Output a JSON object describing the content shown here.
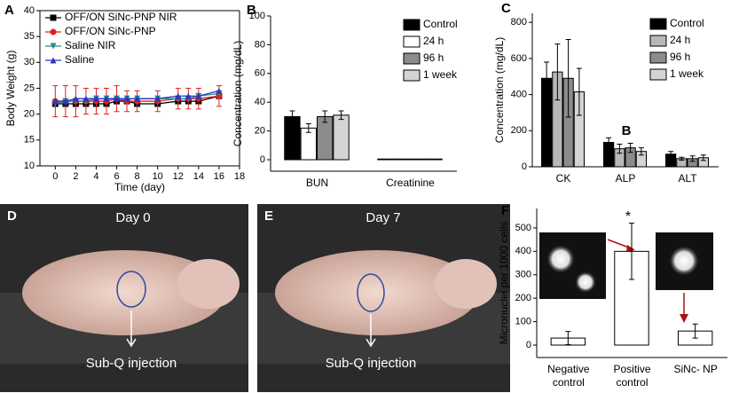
{
  "chart_data": [
    {
      "type": "line",
      "panel": "A",
      "ylabel": "Body Weight (g)",
      "xlabel": "Time (day)",
      "x": [
        0,
        1,
        2,
        3,
        4,
        5,
        6,
        7,
        8,
        10,
        12,
        13,
        14,
        16
      ],
      "xlim": [
        -1.5,
        18
      ],
      "xticks": [
        0,
        2,
        4,
        6,
        8,
        10,
        12,
        14,
        16,
        18
      ],
      "ylim": [
        10,
        40
      ],
      "yticks": [
        10,
        15,
        20,
        25,
        30,
        35,
        40
      ],
      "series": [
        {
          "name": "OFF/ON SiNc-PNP NIR",
          "color": "#000000",
          "values": [
            22,
            22,
            22,
            22,
            22,
            22,
            22.5,
            22.5,
            22,
            22,
            22.5,
            22.5,
            22.5,
            23.5
          ]
        },
        {
          "name": "OFF/ON SiNc-PNP",
          "color": "#e0201e",
          "values": [
            22.5,
            22.5,
            22.5,
            22.5,
            22.5,
            22.5,
            23,
            22.5,
            22.5,
            22.5,
            23,
            23,
            23,
            23.5
          ],
          "errors": [
            3,
            3,
            3,
            2.5,
            2.5,
            2.5,
            2.5,
            2,
            2,
            2,
            2,
            2,
            2,
            2
          ]
        },
        {
          "name": "Saline NIR",
          "color": "#2a8a8a",
          "values": [
            22,
            22.5,
            22.5,
            22.5,
            23,
            23,
            23,
            23,
            23,
            23,
            23,
            23,
            23.5,
            24
          ]
        },
        {
          "name": "Saline",
          "color": "#2b35c4",
          "values": [
            22.5,
            22.5,
            23,
            23,
            23,
            23,
            23,
            23,
            23,
            23,
            23.5,
            23.5,
            23.5,
            24.5
          ]
        }
      ]
    },
    {
      "type": "bar",
      "panel": "B",
      "ylabel": "Concentration (mg/dL)",
      "categories": [
        "BUN",
        "Creatinine"
      ],
      "ylim": [
        -8,
        100
      ],
      "yticks": [
        0,
        20,
        40,
        60,
        80,
        100
      ],
      "series": [
        {
          "name": "Control",
          "color": "#000000",
          "values": [
            30,
            0.5
          ],
          "errors": [
            4,
            0
          ]
        },
        {
          "name": "24 h",
          "color": "#ffffff",
          "values": [
            22,
            0.5
          ],
          "errors": [
            3,
            0
          ]
        },
        {
          "name": "96 h",
          "color": "#8c8c8c",
          "values": [
            30,
            0.5
          ],
          "errors": [
            4,
            0
          ]
        },
        {
          "name": "1 week",
          "color": "#d4d4d4",
          "values": [
            31,
            0.5
          ],
          "errors": [
            3,
            0
          ]
        }
      ]
    },
    {
      "type": "bar",
      "panel": "C",
      "ylabel": "Concentration (mg/dL)",
      "annotation": "B",
      "categories": [
        "CK",
        "ALP",
        "ALT"
      ],
      "ylim": [
        0,
        850
      ],
      "yticks": [
        0,
        200,
        400,
        600,
        800
      ],
      "series": [
        {
          "name": "Control",
          "color": "#000000",
          "values": [
            490,
            135,
            70
          ],
          "errors": [
            90,
            25,
            15
          ]
        },
        {
          "name": "24 h",
          "color": "#b8b8b8",
          "values": [
            525,
            100,
            45
          ],
          "errors": [
            155,
            25,
            8
          ]
        },
        {
          "name": "96 h",
          "color": "#8c8c8c",
          "values": [
            490,
            105,
            45
          ],
          "errors": [
            215,
            25,
            15
          ]
        },
        {
          "name": "1 week",
          "color": "#d4d4d4",
          "values": [
            415,
            85,
            50
          ],
          "errors": [
            130,
            20,
            15
          ]
        }
      ]
    },
    {
      "type": "bar",
      "panel": "F",
      "ylabel": "Micronuclei per 1000 cells",
      "annotation": "*",
      "categories": [
        "Negative control",
        "Positive control",
        "SiNc- NP"
      ],
      "ylim": [
        -53,
        583
      ],
      "yticks": [
        0,
        100,
        200,
        300,
        400,
        500
      ],
      "series": [
        {
          "color": "#ffffff",
          "values": [
            30,
            400,
            60
          ],
          "errors": [
            28,
            120,
            30
          ]
        }
      ]
    }
  ],
  "photos": [
    {
      "label": "D",
      "day": "Day 0",
      "caption": "Sub-Q injection"
    },
    {
      "label": "E",
      "day": "Day 7",
      "caption": "Sub-Q injection"
    }
  ]
}
